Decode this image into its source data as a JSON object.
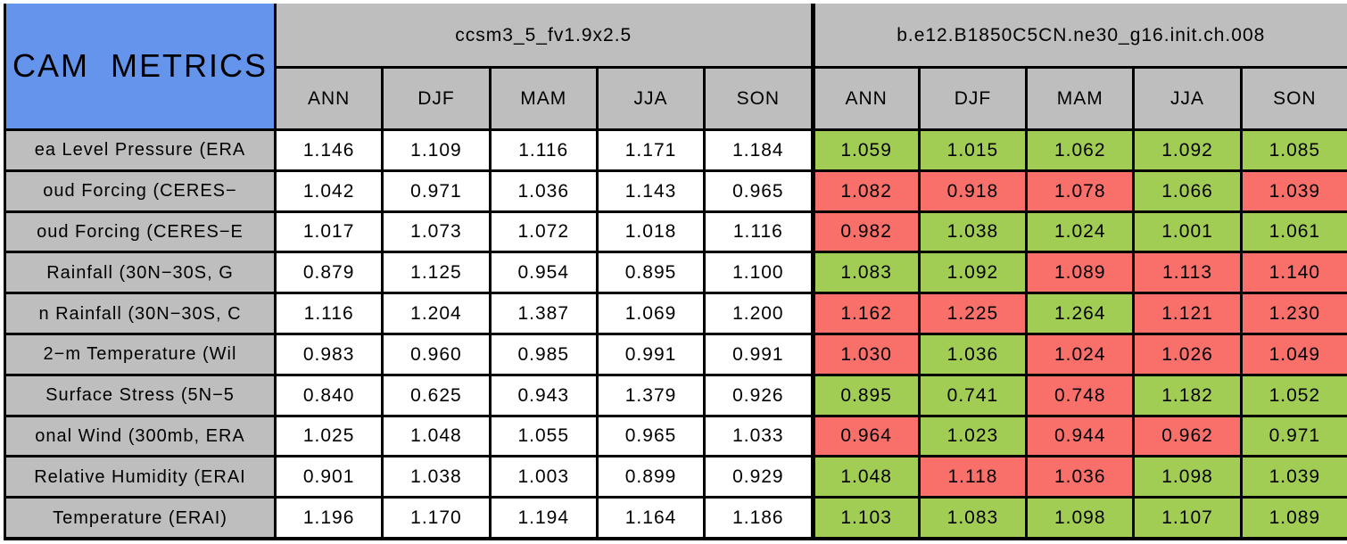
{
  "title": "CAM  METRICS",
  "colors": {
    "title_bg": "#6494EC",
    "header_bg": "#BEBEBE",
    "good_green": "#A2CD55",
    "bad_red": "#F9706B",
    "value_white": "#FFFFFF",
    "grid_line": "#000000"
  },
  "chart_data": {
    "type": "table",
    "title": "CAM METRICS",
    "layout": "two model column-groups, each with 5 season sub-columns; 10 metric rows; second group cells shaded green/red",
    "row_labels": [
      "ea Level Pressure (ERA",
      "oud Forcing (CERES−",
      "oud Forcing (CERES−E",
      "Rainfall (30N−30S, G",
      "n Rainfall (30N−30S, C",
      "2−m Temperature (Wil",
      "Surface Stress (5N−5",
      "onal Wind (300mb, ERA",
      "Relative Humidity (ERAI",
      "Temperature (ERAI)"
    ],
    "seasons": [
      "ANN",
      "DJF",
      "MAM",
      "JJA",
      "SON"
    ],
    "series": [
      {
        "name": "ccsm3_5_fv1.9x2.5",
        "values": [
          [
            "1.146",
            "1.109",
            "1.116",
            "1.171",
            "1.184"
          ],
          [
            "1.042",
            "0.971",
            "1.036",
            "1.143",
            "0.965"
          ],
          [
            "1.017",
            "1.073",
            "1.072",
            "1.018",
            "1.116"
          ],
          [
            "0.879",
            "1.125",
            "0.954",
            "0.895",
            "1.100"
          ],
          [
            "1.116",
            "1.204",
            "1.387",
            "1.069",
            "1.200"
          ],
          [
            "0.983",
            "0.960",
            "0.985",
            "0.991",
            "0.991"
          ],
          [
            "0.840",
            "0.625",
            "0.943",
            "1.379",
            "0.926"
          ],
          [
            "1.025",
            "1.048",
            "1.055",
            "0.965",
            "1.033"
          ],
          [
            "0.901",
            "1.038",
            "1.003",
            "0.899",
            "0.929"
          ],
          [
            "1.196",
            "1.170",
            "1.194",
            "1.164",
            "1.186"
          ]
        ]
      },
      {
        "name": "b.e12.B1850C5CN.ne30_g16.init.ch.008",
        "values": [
          [
            "1.059",
            "1.015",
            "1.062",
            "1.092",
            "1.085"
          ],
          [
            "1.082",
            "0.918",
            "1.078",
            "1.066",
            "1.039"
          ],
          [
            "0.982",
            "1.038",
            "1.024",
            "1.001",
            "1.061"
          ],
          [
            "1.083",
            "1.092",
            "1.089",
            "1.113",
            "1.140"
          ],
          [
            "1.162",
            "1.225",
            "1.264",
            "1.121",
            "1.230"
          ],
          [
            "1.030",
            "1.036",
            "1.024",
            "1.026",
            "1.049"
          ],
          [
            "0.895",
            "0.741",
            "0.748",
            "1.182",
            "1.052"
          ],
          [
            "0.964",
            "1.023",
            "0.944",
            "0.962",
            "0.971"
          ],
          [
            "1.048",
            "1.118",
            "1.036",
            "1.098",
            "1.039"
          ],
          [
            "1.103",
            "1.083",
            "1.098",
            "1.107",
            "1.089"
          ]
        ],
        "cell_colors": [
          [
            "green",
            "green",
            "green",
            "green",
            "green"
          ],
          [
            "red",
            "red",
            "red",
            "green",
            "red"
          ],
          [
            "red",
            "green",
            "green",
            "green",
            "green"
          ],
          [
            "green",
            "green",
            "red",
            "red",
            "red"
          ],
          [
            "red",
            "red",
            "green",
            "red",
            "red"
          ],
          [
            "red",
            "green",
            "red",
            "red",
            "red"
          ],
          [
            "green",
            "green",
            "red",
            "green",
            "green"
          ],
          [
            "red",
            "green",
            "red",
            "red",
            "green"
          ],
          [
            "green",
            "red",
            "red",
            "green",
            "green"
          ],
          [
            "green",
            "green",
            "green",
            "green",
            "green"
          ]
        ]
      }
    ]
  }
}
